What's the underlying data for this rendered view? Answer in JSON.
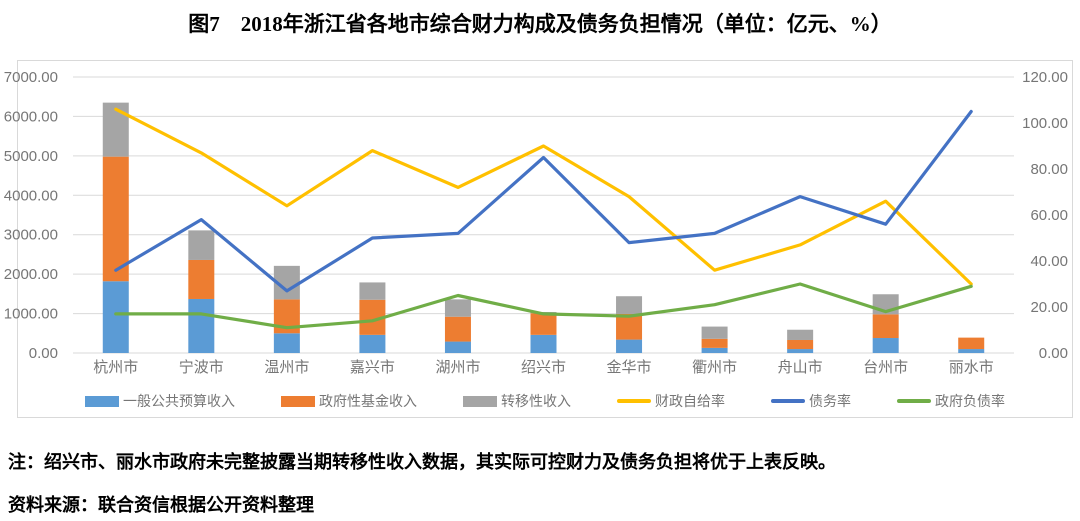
{
  "title": "图7　2018年浙江省各地市综合财力构成及债务负担情况（单位：亿元、%）",
  "note": "注：绍兴市、丽水市政府未完整披露当期转移性收入数据，其实际可控财力及债务负担将优于上表反映。",
  "source": "资料来源：联合资信根据公开资料整理",
  "colors": {
    "grid": "#d9d9d9",
    "border": "#d9d9d9",
    "axis_text": "#767676",
    "bar_blue": "#5B9BD5",
    "bar_orange": "#ED7D31",
    "bar_gray": "#A5A5A5",
    "line_yellow": "#FFC000",
    "line_blue": "#4472C4",
    "line_green": "#70AD47"
  },
  "chart_data": {
    "type": "bar",
    "subtype": "stacked-bar-with-lines-combo",
    "categories": [
      "杭州市",
      "宁波市",
      "温州市",
      "嘉兴市",
      "湖州市",
      "绍兴市",
      "金华市",
      "衢州市",
      "舟山市",
      "台州市",
      "丽水市"
    ],
    "bar_series": [
      {
        "name": "一般公共预算收入",
        "color": "#5B9BD5",
        "axis": "left",
        "values": [
          1820,
          1370,
          500,
          460,
          290,
          460,
          340,
          130,
          100,
          380,
          100
        ]
      },
      {
        "name": "政府性基金收入",
        "color": "#ED7D31",
        "axis": "left",
        "values": [
          3160,
          990,
          860,
          890,
          630,
          550,
          650,
          230,
          230,
          600,
          290
        ]
      },
      {
        "name": "转移性收入",
        "color": "#A5A5A5",
        "axis": "left",
        "values": [
          1370,
          750,
          850,
          440,
          440,
          30,
          450,
          310,
          260,
          510,
          0
        ]
      }
    ],
    "line_series": [
      {
        "name": "财政自给率",
        "color": "#FFC000",
        "axis": "right",
        "values": [
          106,
          87,
          64,
          88,
          72,
          90,
          68,
          36,
          47,
          66,
          30
        ]
      },
      {
        "name": "债务率",
        "color": "#4472C4",
        "axis": "right",
        "values": [
          36,
          58,
          27,
          50,
          52,
          85,
          48,
          52,
          68,
          56,
          105
        ]
      },
      {
        "name": "政府负债率",
        "color": "#70AD47",
        "axis": "right",
        "values": [
          17,
          17,
          11,
          14,
          25,
          17,
          16,
          21,
          30,
          18,
          29
        ]
      }
    ],
    "left_axis": {
      "min": 0,
      "max": 7000,
      "step": 1000,
      "unit": "亿元",
      "tick_labels": [
        "0.00",
        "1000.00",
        "2000.00",
        "3000.00",
        "4000.00",
        "5000.00",
        "6000.00",
        "7000.00"
      ]
    },
    "right_axis": {
      "min": 0,
      "max": 120,
      "step": 20,
      "unit": "%",
      "tick_labels": [
        "0.00",
        "20.00",
        "40.00",
        "60.00",
        "80.00",
        "100.00",
        "120.00"
      ]
    },
    "grid": "horizontal",
    "legend_position": "bottom"
  }
}
